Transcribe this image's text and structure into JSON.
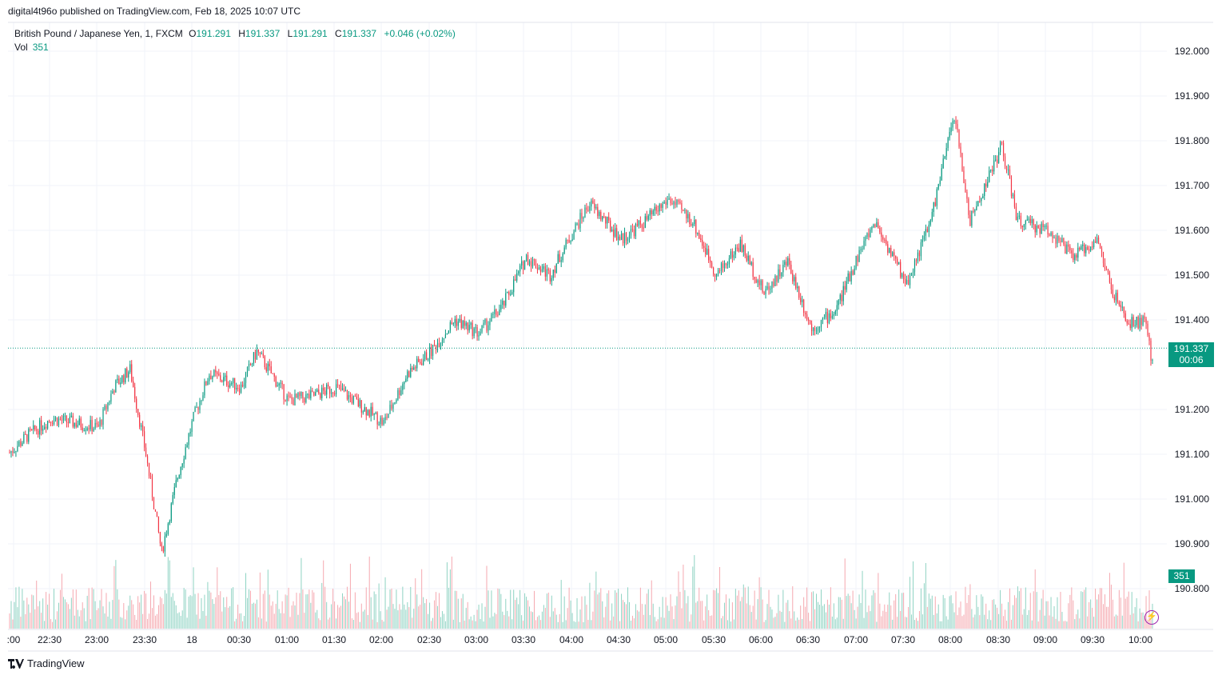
{
  "header": {
    "publish_line": "digital4t96o published on TradingView.com, Feb 18, 2025 10:07 UTC"
  },
  "legend": {
    "symbol": "British Pound / Japanese Yen, 1, FXCM",
    "open_label": "O",
    "open": "191.291",
    "high_label": "H",
    "high": "191.337",
    "low_label": "L",
    "low": "191.291",
    "close_label": "C",
    "close": "191.337",
    "change": "+0.046 (+0.02%)",
    "vol_label": "Vol",
    "vol_value": "351"
  },
  "price_tag": {
    "price": "191.337",
    "countdown": "00:06"
  },
  "vol_tag": "351",
  "footer": {
    "brand": "TradingView"
  },
  "colors": {
    "up": "#089981",
    "down": "#f23645",
    "grid": "#f0f3fa"
  },
  "chart_data": {
    "type": "candlestick",
    "y_axis": {
      "ticks": [
        "192.000",
        "191.900",
        "191.800",
        "191.700",
        "191.600",
        "191.500",
        "191.400",
        "191.200",
        "191.100",
        "191.000",
        "190.900",
        "190.800"
      ],
      "range": [
        190.74,
        192.06
      ]
    },
    "x_axis": {
      "ticks": [
        ":00",
        "22:30",
        "23:00",
        "23:30",
        "18",
        "00:30",
        "01:00",
        "01:30",
        "02:00",
        "02:30",
        "03:00",
        "03:30",
        "04:00",
        "04:30",
        "05:00",
        "05:30",
        "06:00",
        "06:30",
        "07:00",
        "07:30",
        "08:00",
        "08:30",
        "09:00",
        "09:30",
        "10:00"
      ]
    },
    "last_price": 191.337,
    "price_path": [
      {
        "t": "22:00",
        "p": 191.09
      },
      {
        "t": "22:15",
        "p": 191.14
      },
      {
        "t": "22:30",
        "p": 191.18
      },
      {
        "t": "22:45",
        "p": 191.17
      },
      {
        "t": "23:00",
        "p": 191.16
      },
      {
        "t": "23:10",
        "p": 191.25
      },
      {
        "t": "23:20",
        "p": 191.29
      },
      {
        "t": "23:30",
        "p": 191.1
      },
      {
        "t": "23:40",
        "p": 190.88
      },
      {
        "t": "23:50",
        "p": 191.05
      },
      {
        "t": "00:00",
        "p": 191.18
      },
      {
        "t": "00:10",
        "p": 191.28
      },
      {
        "t": "00:30",
        "p": 191.25
      },
      {
        "t": "00:40",
        "p": 191.33
      },
      {
        "t": "01:00",
        "p": 191.22
      },
      {
        "t": "01:15",
        "p": 191.23
      },
      {
        "t": "01:30",
        "p": 191.25
      },
      {
        "t": "01:45",
        "p": 191.21
      },
      {
        "t": "02:00",
        "p": 191.17
      },
      {
        "t": "02:15",
        "p": 191.28
      },
      {
        "t": "02:30",
        "p": 191.33
      },
      {
        "t": "02:45",
        "p": 191.4
      },
      {
        "t": "03:00",
        "p": 191.37
      },
      {
        "t": "03:15",
        "p": 191.43
      },
      {
        "t": "03:30",
        "p": 191.54
      },
      {
        "t": "03:45",
        "p": 191.5
      },
      {
        "t": "04:00",
        "p": 191.6
      },
      {
        "t": "04:10",
        "p": 191.66
      },
      {
        "t": "04:30",
        "p": 191.58
      },
      {
        "t": "04:45",
        "p": 191.62
      },
      {
        "t": "05:00",
        "p": 191.67
      },
      {
        "t": "05:15",
        "p": 191.62
      },
      {
        "t": "05:30",
        "p": 191.5
      },
      {
        "t": "05:45",
        "p": 191.57
      },
      {
        "t": "06:00",
        "p": 191.46
      },
      {
        "t": "06:15",
        "p": 191.53
      },
      {
        "t": "06:30",
        "p": 191.38
      },
      {
        "t": "06:45",
        "p": 191.42
      },
      {
        "t": "07:00",
        "p": 191.55
      },
      {
        "t": "07:10",
        "p": 191.62
      },
      {
        "t": "07:30",
        "p": 191.48
      },
      {
        "t": "07:45",
        "p": 191.62
      },
      {
        "t": "08:00",
        "p": 191.86
      },
      {
        "t": "08:10",
        "p": 191.62
      },
      {
        "t": "08:30",
        "p": 191.79
      },
      {
        "t": "08:40",
        "p": 191.62
      },
      {
        "t": "09:00",
        "p": 191.6
      },
      {
        "t": "09:15",
        "p": 191.54
      },
      {
        "t": "09:30",
        "p": 191.58
      },
      {
        "t": "09:40",
        "p": 191.46
      },
      {
        "t": "09:50",
        "p": 191.39
      },
      {
        "t": "10:00",
        "p": 191.4
      },
      {
        "t": "10:05",
        "p": 191.3
      }
    ],
    "volume": {
      "last": 351
    }
  }
}
